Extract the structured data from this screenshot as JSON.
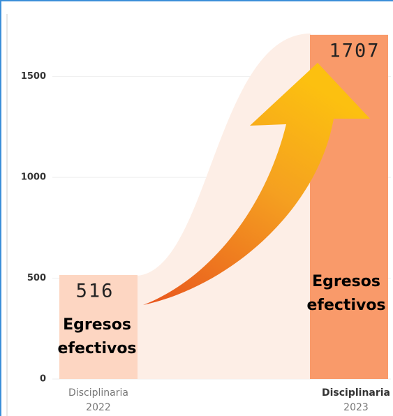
{
  "chart_data": {
    "type": "bar",
    "categories": [
      "Disciplinaria 2022",
      "Disciplinaria 2023"
    ],
    "values": [
      516,
      1707
    ],
    "colors": [
      "#fdd6c2",
      "#f99a6a"
    ],
    "annotations": [
      "Egresos efectivos",
      "Egresos efectivos"
    ],
    "ylim": [
      0,
      1800
    ],
    "yticks": [
      0,
      500,
      1000,
      1500
    ],
    "grid": true
  }
}
